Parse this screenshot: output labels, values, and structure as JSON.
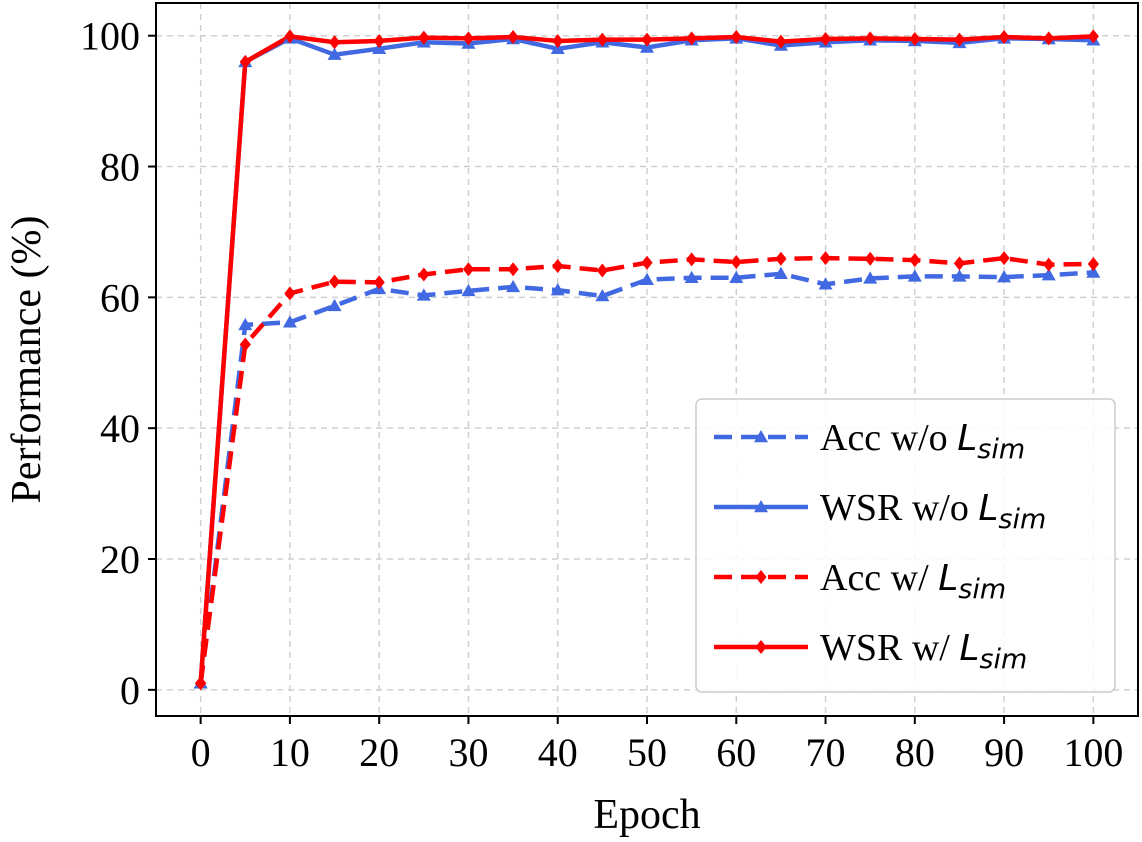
{
  "chart_data": {
    "type": "line",
    "xlabel": "Epoch",
    "ylabel": "Performance (%)",
    "xlim": [
      -5,
      105
    ],
    "ylim": [
      -4,
      105
    ],
    "x_ticks": [
      0,
      10,
      20,
      30,
      40,
      50,
      60,
      70,
      80,
      90,
      100
    ],
    "y_ticks": [
      0,
      20,
      40,
      60,
      80,
      100
    ],
    "grid": true,
    "legend_position": "lower-right",
    "x": [
      0,
      5,
      10,
      15,
      20,
      25,
      30,
      35,
      40,
      45,
      50,
      55,
      60,
      65,
      70,
      75,
      80,
      85,
      90,
      95,
      100
    ],
    "series": [
      {
        "key": "acc-wo",
        "label_prefix": "Acc w/o",
        "symbol": "L",
        "subscript": "sim",
        "color": "#4169e1",
        "dash": true,
        "marker": "triangle",
        "values": [
          1.0,
          55.8,
          56.2,
          58.7,
          61.3,
          60.3,
          61.0,
          61.6,
          61.1,
          60.2,
          62.7,
          63.0,
          63.0,
          63.6,
          62.0,
          62.9,
          63.2,
          63.2,
          63.1,
          63.4,
          63.8
        ]
      },
      {
        "key": "wsr-wo",
        "label_prefix": "WSR w/o",
        "symbol": "L",
        "subscript": "sim",
        "color": "#4169e1",
        "dash": false,
        "marker": "triangle",
        "values": [
          1.0,
          96.0,
          99.6,
          97.1,
          98.0,
          99.0,
          98.8,
          99.5,
          98.0,
          99.0,
          98.2,
          99.3,
          99.6,
          98.5,
          99.0,
          99.3,
          99.2,
          98.9,
          99.6,
          99.5,
          99.3
        ]
      },
      {
        "key": "acc-w",
        "label_prefix": "Acc w/",
        "symbol": "L",
        "subscript": "sim",
        "color": "#ff0000",
        "dash": true,
        "marker": "diamond",
        "values": [
          1.0,
          52.8,
          60.6,
          62.4,
          62.3,
          63.5,
          64.3,
          64.3,
          64.8,
          64.1,
          65.3,
          65.8,
          65.4,
          65.9,
          66.0,
          65.9,
          65.7,
          65.2,
          66.0,
          65.0,
          65.1
        ]
      },
      {
        "key": "wsr-w",
        "label_prefix": "WSR w/",
        "symbol": "L",
        "subscript": "sim",
        "color": "#ff0000",
        "dash": false,
        "marker": "diamond",
        "values": [
          1.0,
          96.0,
          99.9,
          99.0,
          99.2,
          99.7,
          99.6,
          99.8,
          99.2,
          99.4,
          99.4,
          99.6,
          99.8,
          99.1,
          99.5,
          99.6,
          99.5,
          99.4,
          99.8,
          99.6,
          99.9
        ]
      }
    ]
  }
}
